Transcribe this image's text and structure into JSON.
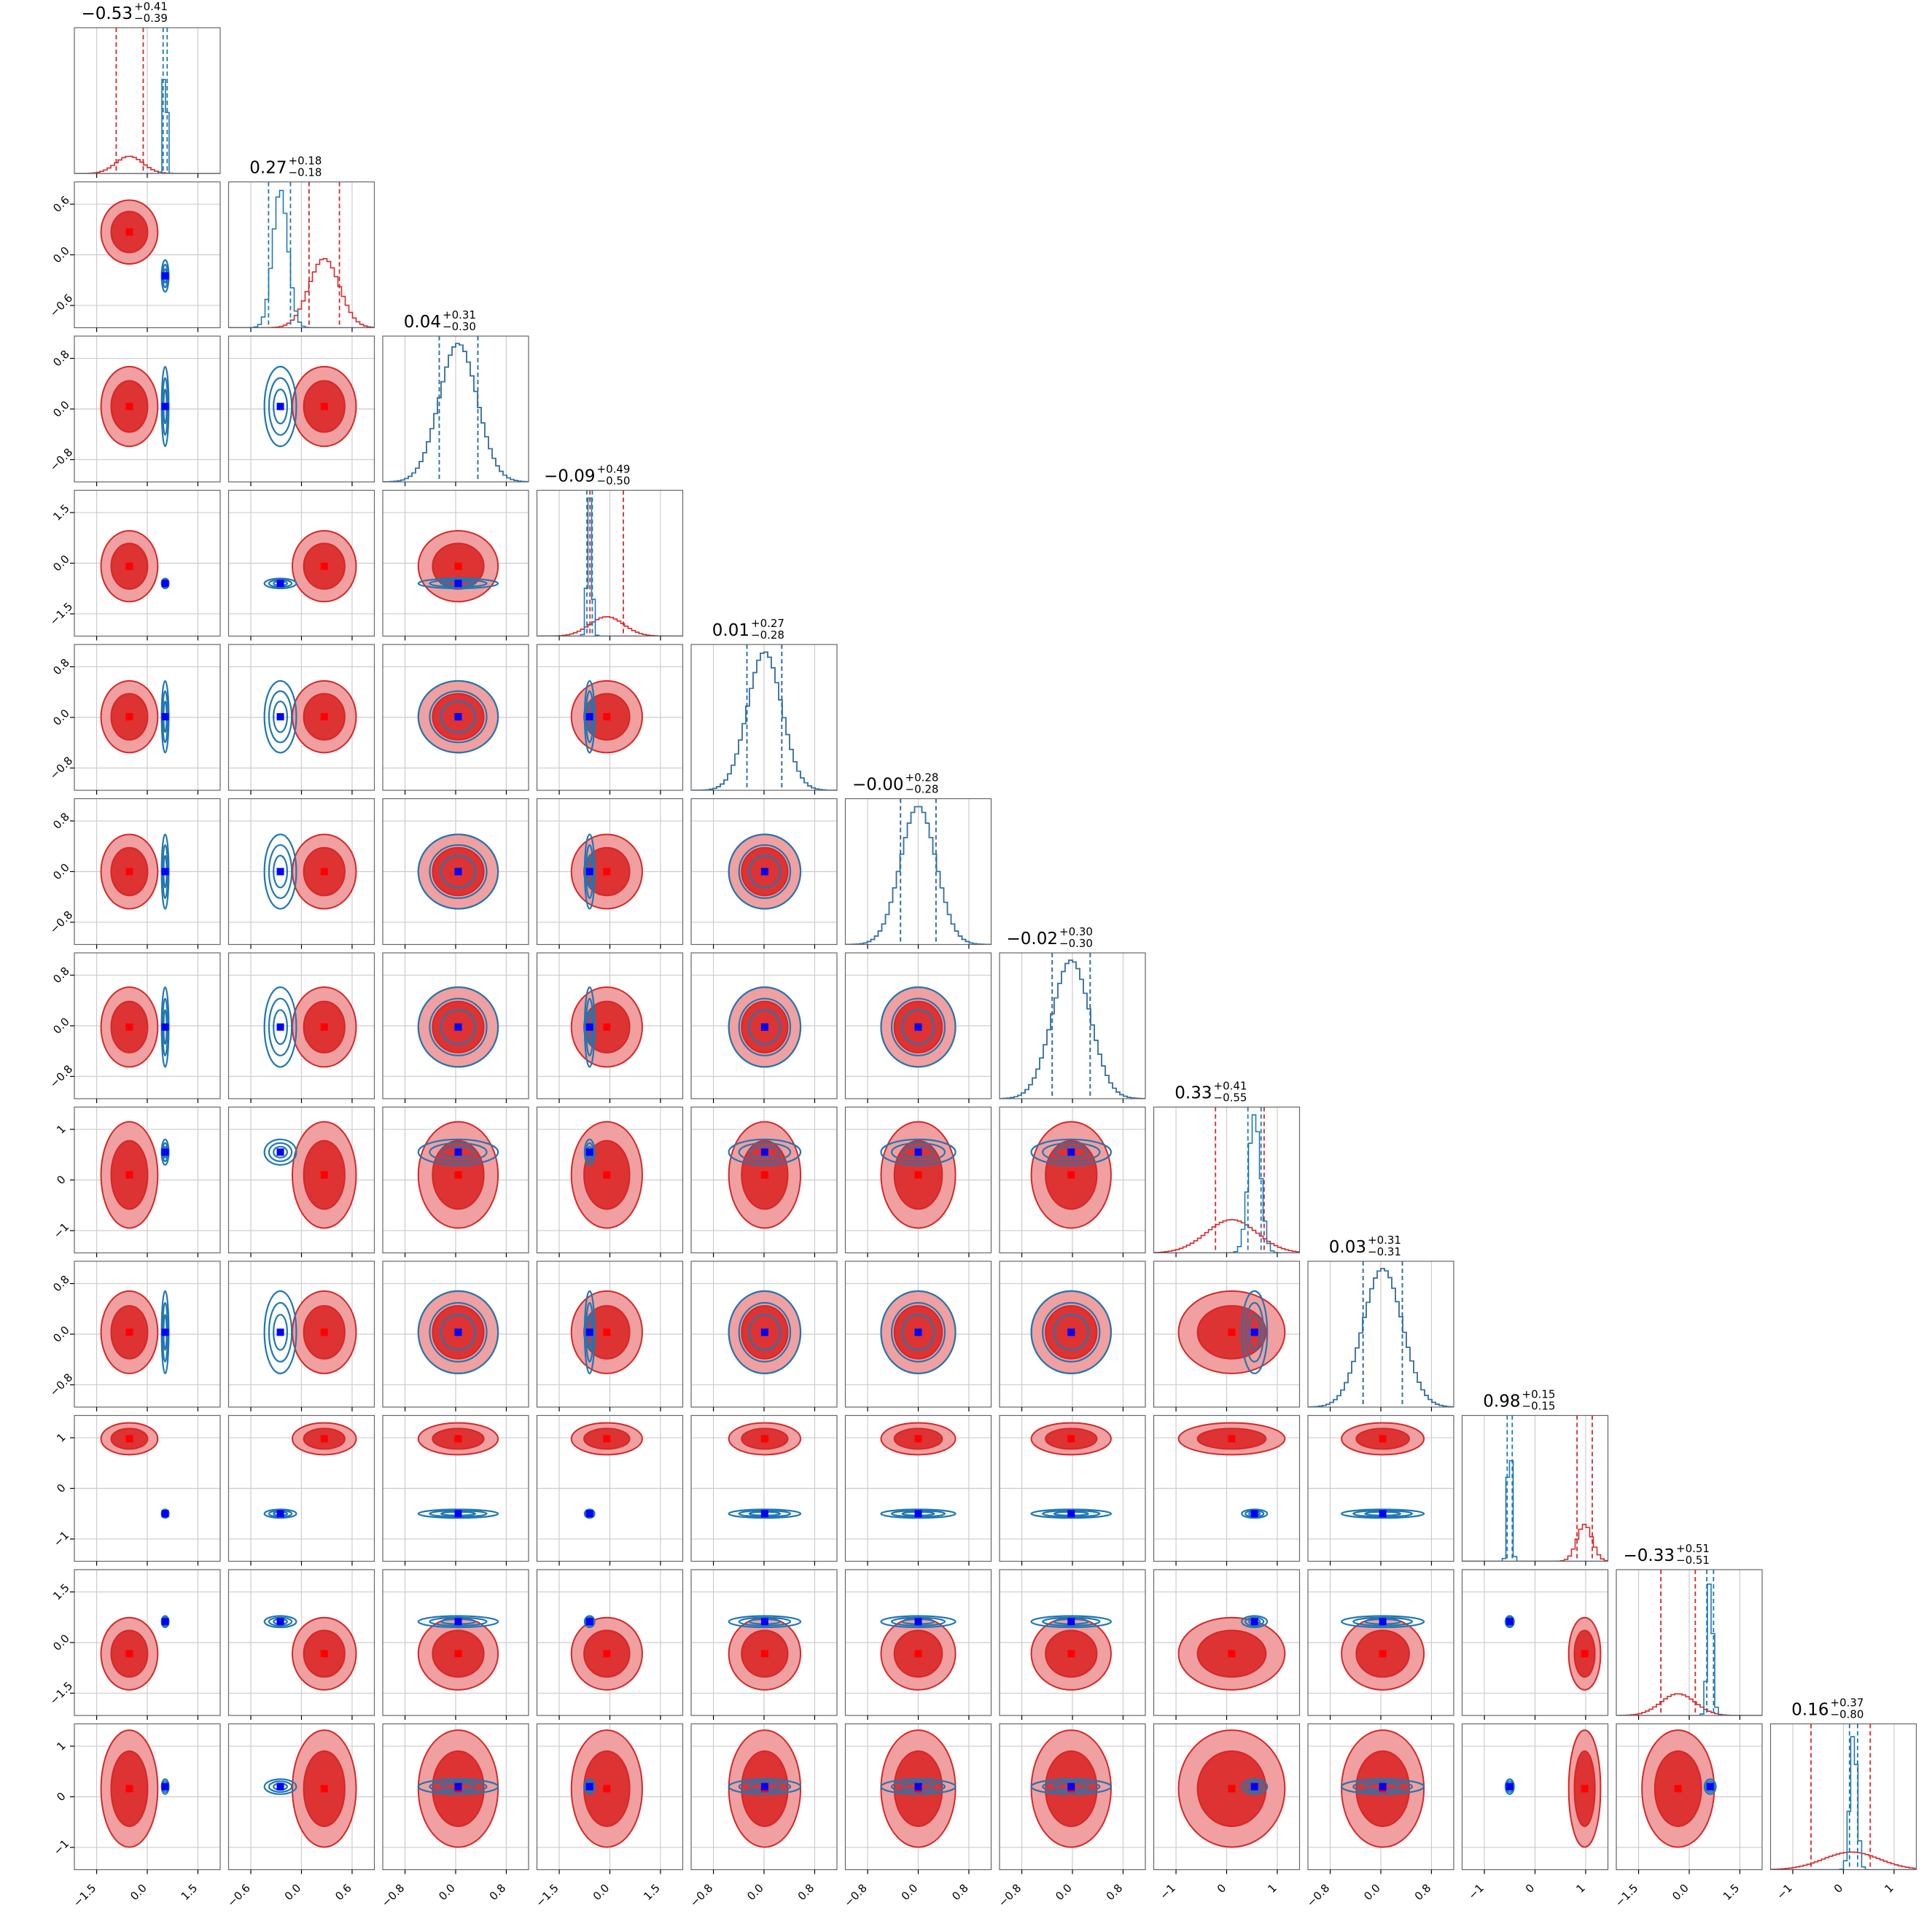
{
  "chart_data": {
    "type": "corner",
    "n_params": 12,
    "grid": true,
    "colors": {
      "red_fill_outer": "#f0a0a0",
      "red_fill_inner": "#dd3333",
      "red_line": "#d62728",
      "blue_line": "#1f77b4",
      "marker_red": "#ff0000",
      "marker_blue": "#0000ff"
    },
    "params": [
      {
        "title": "−0.53",
        "plus": "+0.41",
        "minus": "−0.39",
        "ticks": [
          "−1.5",
          "0.0",
          "1.5"
        ],
        "red_mean": -0.53,
        "red_sd": 0.4,
        "red_q": [
          -0.92,
          -0.12
        ],
        "blue_mean": 0.53,
        "blue_sd": 0.05,
        "blue_q": [
          0.47,
          0.59
        ]
      },
      {
        "title": "0.27",
        "plus": "+0.18",
        "minus": "−0.18",
        "ticks": [
          "−0.6",
          "0.0",
          "0.6"
        ],
        "red_mean": 0.27,
        "red_sd": 0.18,
        "red_q": [
          0.09,
          0.45
        ],
        "blue_mean": -0.25,
        "blue_sd": 0.09,
        "blue_q": [
          -0.39,
          -0.13
        ]
      },
      {
        "title": "0.04",
        "plus": "+0.31",
        "minus": "−0.30",
        "ticks": [
          "−0.8",
          "0.0",
          "0.8"
        ],
        "red_mean": 0.04,
        "red_sd": 0.3,
        "red_q": [
          -0.26,
          0.35
        ],
        "blue_mean": 0.04,
        "blue_sd": 0.3,
        "blue_q": [
          -0.26,
          0.35
        ]
      },
      {
        "title": "−0.09",
        "plus": "+0.49",
        "minus": "−0.50",
        "ticks": [
          "−1.5",
          "0.0",
          "1.5"
        ],
        "red_mean": -0.09,
        "red_sd": 0.5,
        "red_q": [
          -0.59,
          0.4
        ],
        "blue_mean": -0.6,
        "blue_sd": 0.07,
        "blue_q": [
          -0.68,
          -0.52
        ]
      },
      {
        "title": "0.01",
        "plus": "+0.27",
        "minus": "−0.28",
        "ticks": [
          "−0.8",
          "0.0",
          "0.8"
        ],
        "red_mean": 0.01,
        "red_sd": 0.27,
        "red_q": [
          -0.27,
          0.28
        ],
        "blue_mean": 0.01,
        "blue_sd": 0.27,
        "blue_q": [
          -0.27,
          0.28
        ]
      },
      {
        "title": "−0.00",
        "plus": "+0.28",
        "minus": "−0.28",
        "ticks": [
          "−0.8",
          "0.0",
          "0.8"
        ],
        "red_mean": 0.0,
        "red_sd": 0.28,
        "red_q": [
          -0.28,
          0.28
        ],
        "blue_mean": 0.0,
        "blue_sd": 0.28,
        "blue_q": [
          -0.28,
          0.28
        ]
      },
      {
        "title": "−0.02",
        "plus": "+0.30",
        "minus": "−0.30",
        "ticks": [
          "−0.8",
          "0.0",
          "0.8"
        ],
        "red_mean": -0.02,
        "red_sd": 0.3,
        "red_q": [
          -0.32,
          0.28
        ],
        "blue_mean": -0.02,
        "blue_sd": 0.3,
        "blue_q": [
          -0.32,
          0.28
        ]
      },
      {
        "title": "0.33",
        "plus": "+0.41",
        "minus": "−0.55",
        "ticks": [
          "−1",
          "0",
          "1"
        ],
        "red_mean": 0.1,
        "red_sd": 0.5,
        "red_q": [
          -0.22,
          0.74
        ],
        "blue_mean": 0.55,
        "blue_sd": 0.12,
        "blue_q": [
          0.42,
          0.68
        ]
      },
      {
        "title": "0.03",
        "plus": "+0.31",
        "minus": "−0.31",
        "ticks": [
          "−0.8",
          "0.0",
          "0.8"
        ],
        "red_mean": 0.03,
        "red_sd": 0.31,
        "red_q": [
          -0.28,
          0.34
        ],
        "blue_mean": 0.03,
        "blue_sd": 0.31,
        "blue_q": [
          -0.28,
          0.34
        ]
      },
      {
        "title": "0.98",
        "plus": "+0.15",
        "minus": "−0.15",
        "ticks": [
          "−1",
          "0",
          "1"
        ],
        "red_mean": 0.98,
        "red_sd": 0.15,
        "red_q": [
          0.83,
          1.13
        ],
        "blue_mean": -0.5,
        "blue_sd": 0.04,
        "blue_q": [
          -0.55,
          -0.45
        ]
      },
      {
        "title": "−0.33",
        "plus": "+0.51",
        "minus": "−0.51",
        "ticks": [
          "−1.5",
          "0.0",
          "1.5"
        ],
        "red_mean": -0.33,
        "red_sd": 0.51,
        "red_q": [
          -0.84,
          0.18
        ],
        "blue_mean": 0.62,
        "blue_sd": 0.08,
        "blue_q": [
          0.52,
          0.72
        ]
      },
      {
        "title": "0.16",
        "plus": "+0.37",
        "minus": "−0.80",
        "ticks": [
          "−1",
          "0",
          "1"
        ],
        "red_mean": 0.16,
        "red_sd": 0.55,
        "red_q": [
          -0.64,
          0.53
        ],
        "blue_mean": 0.2,
        "blue_sd": 0.07,
        "blue_q": [
          0.12,
          0.28
        ]
      }
    ]
  }
}
